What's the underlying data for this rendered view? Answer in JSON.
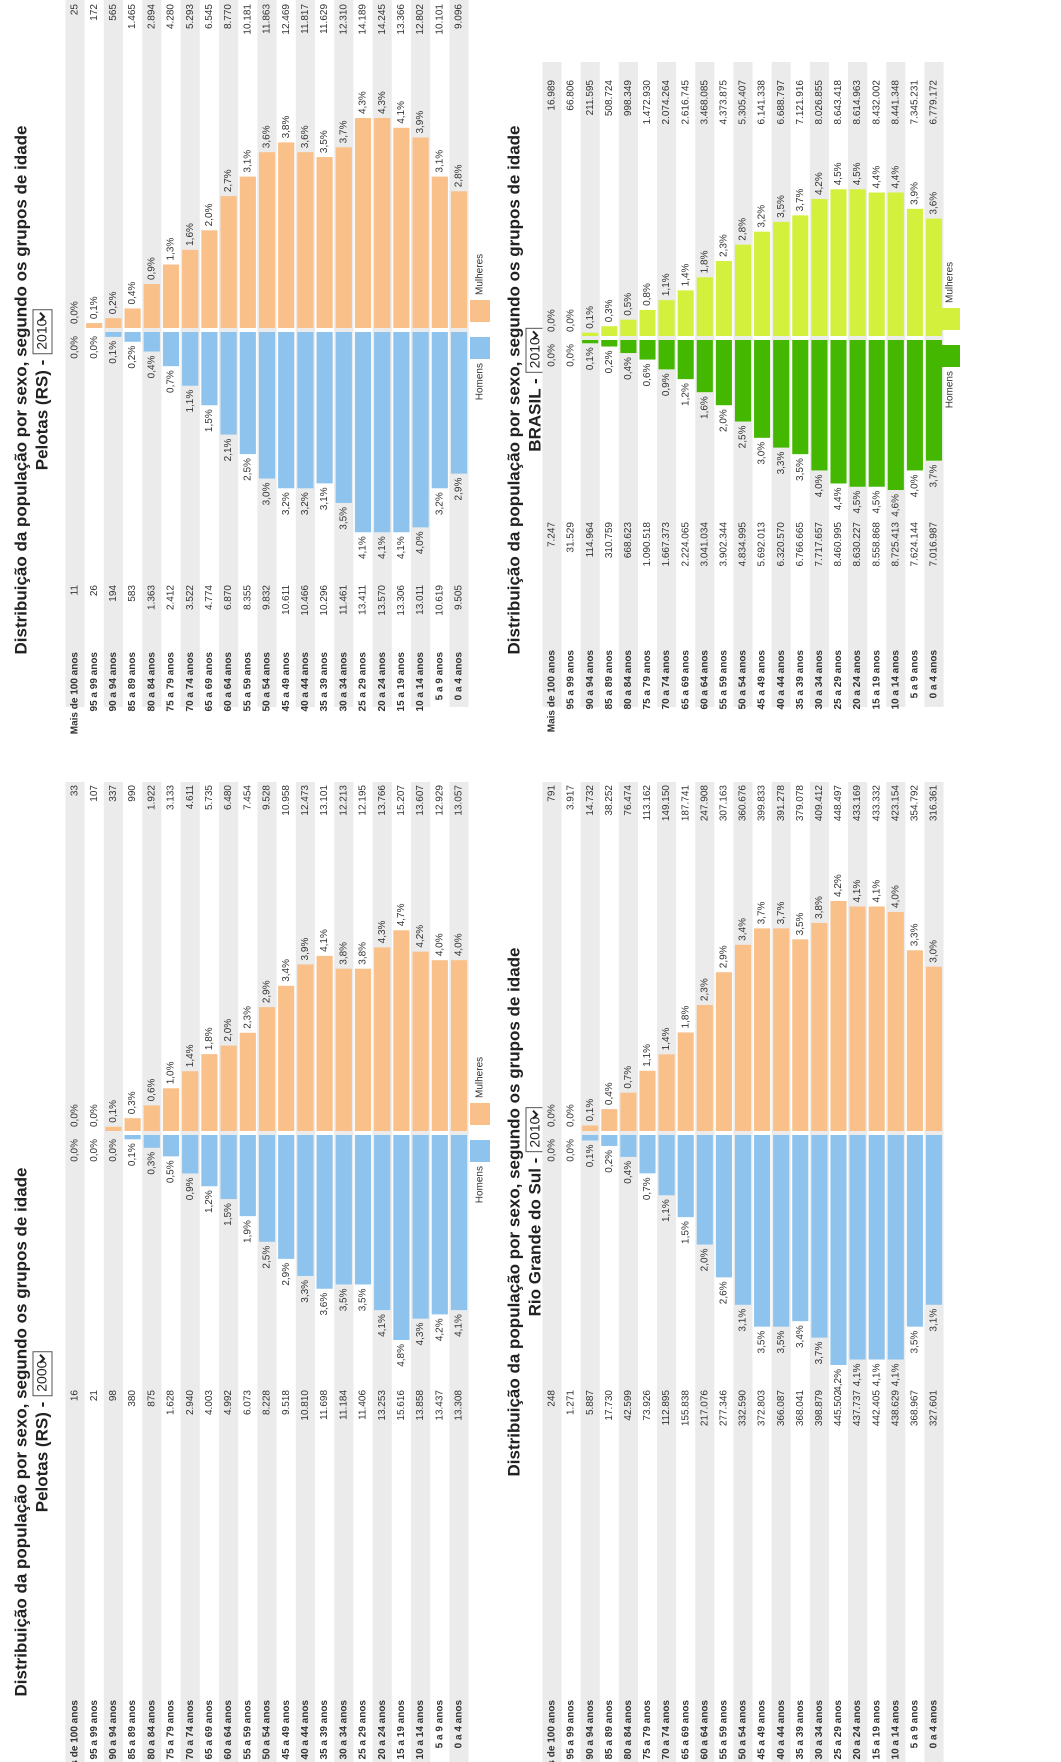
{
  "chart_data": [
    {
      "type": "pyramid",
      "title": "Distribuição da população por sexo, segundo os grupos de idade",
      "subtitle": "Pelotas (RS) -",
      "year": "2000",
      "categories": [
        "Mais de 100 anos",
        "95 a 99 anos",
        "90 a 94 anos",
        "85 a 89 anos",
        "80 a 84 anos",
        "75 a 79 anos",
        "70 a 74 anos",
        "65 a 69 anos",
        "60 a 64 anos",
        "55 a 59 anos",
        "50 a 54 anos",
        "45 a 49 anos",
        "40 a 44 anos",
        "35 a 39 anos",
        "30 a 34 anos",
        "25 a 29 anos",
        "20 a 24 anos",
        "15 a 19 anos",
        "10 a 14 anos",
        "5 a 9 anos",
        "0 a 4 anos"
      ],
      "series": [
        {
          "name": "Homens",
          "color": "#8dc3ec",
          "values": [
            0.0,
            0.0,
            0.0,
            0.1,
            0.3,
            0.5,
            0.9,
            1.2,
            1.5,
            1.9,
            2.5,
            2.9,
            3.3,
            3.6,
            3.5,
            3.5,
            4.1,
            4.8,
            4.3,
            4.2,
            4.1
          ],
          "value_labels": [
            "0,0%",
            "0,0%",
            "0,0%",
            "0,1%",
            "0,3%",
            "0,5%",
            "0,9%",
            "1,2%",
            "1,5%",
            "1,9%",
            "2,5%",
            "2,9%",
            "3,3%",
            "3,6%",
            "3,5%",
            "3,5%",
            "4,1%",
            "4,8%",
            "4,3%",
            "4,2%",
            "4,1%"
          ],
          "counts": [
            "16",
            "21",
            "98",
            "380",
            "875",
            "1.628",
            "2.940",
            "4.003",
            "4.992",
            "6.073",
            "8.228",
            "9.518",
            "10.810",
            "11.698",
            "11.184",
            "11.406",
            "13.253",
            "15.616",
            "13.858",
            "13.437",
            "13.308"
          ]
        },
        {
          "name": "Mulheres",
          "color": "#f9c089",
          "values": [
            0.0,
            0.0,
            0.1,
            0.3,
            0.6,
            1.0,
            1.4,
            1.8,
            2.0,
            2.3,
            2.9,
            3.4,
            3.9,
            4.1,
            3.8,
            3.8,
            4.3,
            4.7,
            4.2,
            4.0,
            4.0
          ],
          "value_labels": [
            "0,0%",
            "0,0%",
            "0,1%",
            "0,3%",
            "0,6%",
            "1,0%",
            "1,4%",
            "1,8%",
            "2,0%",
            "2,3%",
            "2,9%",
            "3,4%",
            "3,9%",
            "4,1%",
            "3,8%",
            "3,8%",
            "4,3%",
            "4,7%",
            "4,2%",
            "4,0%",
            "4,0%"
          ],
          "counts": [
            "33",
            "107",
            "337",
            "990",
            "1.922",
            "3.133",
            "4.611",
            "5.735",
            "6.480",
            "7.454",
            "9.528",
            "10.958",
            "12.473",
            "13.101",
            "12.213",
            "12.195",
            "13.766",
            "15.207",
            "13.607",
            "12.929",
            "13.057"
          ]
        }
      ]
    },
    {
      "type": "pyramid",
      "title": "Distribuição da população por sexo, segundo os grupos de idade",
      "subtitle": "Pelotas (RS) -",
      "year": "2010",
      "categories": [
        "Mais de 100 anos",
        "95 a 99 anos",
        "90 a 94 anos",
        "85 a 89 anos",
        "80 a 84 anos",
        "75 a 79 anos",
        "70 a 74 anos",
        "65 a 69 anos",
        "60 a 64 anos",
        "55 a 59 anos",
        "50 a 54 anos",
        "45 a 49 anos",
        "40 a 44 anos",
        "35 a 39 anos",
        "30 a 34 anos",
        "25 a 29 anos",
        "20 a 24 anos",
        "15 a 19 anos",
        "10 a 14 anos",
        "5 a 9 anos",
        "0 a 4 anos"
      ],
      "series": [
        {
          "name": "Homens",
          "color": "#8dc3ec",
          "values": [
            0.0,
            0.0,
            0.1,
            0.2,
            0.4,
            0.7,
            1.1,
            1.5,
            2.1,
            2.5,
            3.0,
            3.2,
            3.2,
            3.1,
            3.5,
            4.1,
            4.1,
            4.1,
            4.0,
            3.2,
            2.9
          ],
          "value_labels": [
            "0,0%",
            "0,0%",
            "0,1%",
            "0,2%",
            "0,4%",
            "0,7%",
            "1,1%",
            "1,5%",
            "2,1%",
            "2,5%",
            "3,0%",
            "3,2%",
            "3,2%",
            "3,1%",
            "3,5%",
            "4,1%",
            "4,1%",
            "4,1%",
            "4,0%",
            "3,2%",
            "2,9%"
          ],
          "counts": [
            "11",
            "26",
            "194",
            "583",
            "1.363",
            "2.412",
            "3.522",
            "4.774",
            "6.870",
            "8.355",
            "9.832",
            "10.611",
            "10.466",
            "10.296",
            "11.461",
            "13.411",
            "13.570",
            "13.306",
            "13.011",
            "10.619",
            "9.505"
          ]
        },
        {
          "name": "Mulheres",
          "color": "#f9c089",
          "values": [
            0.0,
            0.1,
            0.2,
            0.4,
            0.9,
            1.3,
            1.6,
            2.0,
            2.7,
            3.1,
            3.6,
            3.8,
            3.6,
            3.5,
            3.7,
            4.3,
            4.3,
            4.1,
            3.9,
            3.1,
            2.8
          ],
          "value_labels": [
            "0,0%",
            "0,1%",
            "0,2%",
            "0,4%",
            "0,9%",
            "1,3%",
            "1,6%",
            "2,0%",
            "2,7%",
            "3,1%",
            "3,6%",
            "3,8%",
            "3,6%",
            "3,5%",
            "3,7%",
            "4,3%",
            "4,3%",
            "4,1%",
            "3,9%",
            "3,1%",
            "2,8%"
          ],
          "counts": [
            "25",
            "172",
            "565",
            "1.465",
            "2.894",
            "4.280",
            "5.293",
            "6.545",
            "8.770",
            "10.181",
            "11.863",
            "12.469",
            "11.817",
            "11.629",
            "12.310",
            "14.189",
            "14.245",
            "13.366",
            "12.802",
            "10.101",
            "9.096"
          ]
        }
      ]
    },
    {
      "type": "pyramid",
      "title": "Distribuição da população por sexo, segundo os grupos de idade",
      "subtitle": "Rio Grande do Sul -",
      "year": "2010",
      "categories": [
        "Mais de 100 anos",
        "95 a 99 anos",
        "90 a 94 anos",
        "85 a 89 anos",
        "80 a 84 anos",
        "75 a 79 anos",
        "70 a 74 anos",
        "65 a 69 anos",
        "60 a 64 anos",
        "55 a 59 anos",
        "50 a 54 anos",
        "45 a 49 anos",
        "40 a 44 anos",
        "35 a 39 anos",
        "30 a 34 anos",
        "25 a 29 anos",
        "20 a 24 anos",
        "15 a 19 anos",
        "10 a 14 anos",
        "5 a 9 anos",
        "0 a 4 anos"
      ],
      "series": [
        {
          "color": "#8dc3ec",
          "values": [
            0.0,
            0.0,
            0.1,
            0.2,
            0.4,
            0.7,
            1.1,
            1.5,
            2.0,
            2.6,
            3.1,
            3.5,
            3.5,
            3.4,
            3.7,
            4.2,
            4.1,
            4.1,
            4.1,
            3.5,
            3.1
          ],
          "value_labels": [
            "0,0%",
            "0,0%",
            "0,1%",
            "0,2%",
            "0,4%",
            "0,7%",
            "1,1%",
            "1,5%",
            "2,0%",
            "2,6%",
            "3,1%",
            "3,5%",
            "3,5%",
            "3,4%",
            "3,7%",
            "4,2%",
            "4,1%",
            "4,1%",
            "4,1%",
            "3,5%",
            "3,1%"
          ],
          "counts": [
            "248",
            "1.271",
            "5.887",
            "17.730",
            "42.599",
            "73.926",
            "112.895",
            "155.838",
            "217.076",
            "277.346",
            "332.590",
            "372.803",
            "366.087",
            "368.041",
            "398.879",
            "445.502",
            "437.737",
            "442.405",
            "438.629",
            "368.967",
            "327.601"
          ]
        },
        {
          "color": "#f9c089",
          "values": [
            0.0,
            0.0,
            0.1,
            0.4,
            0.7,
            1.1,
            1.4,
            1.8,
            2.3,
            2.9,
            3.4,
            3.7,
            3.7,
            3.5,
            3.8,
            4.2,
            4.1,
            4.1,
            4.0,
            3.3,
            3.0
          ],
          "value_labels": [
            "0,0%",
            "0,0%",
            "0,1%",
            "0,4%",
            "0,7%",
            "1,1%",
            "1,4%",
            "1,8%",
            "2,3%",
            "2,9%",
            "3,4%",
            "3,7%",
            "3,7%",
            "3,5%",
            "3,8%",
            "4,2%",
            "4,1%",
            "4,1%",
            "4,0%",
            "3,3%",
            "3,0%"
          ],
          "counts": [
            "791",
            "3.917",
            "14.732",
            "38.252",
            "76.474",
            "113.162",
            "149.150",
            "187.741",
            "247.908",
            "307.163",
            "360.676",
            "399.833",
            "391.278",
            "379.078",
            "409.412",
            "448.497",
            "433.169",
            "433.332",
            "423.154",
            "354.792",
            "316.361"
          ]
        }
      ]
    },
    {
      "type": "pyramid",
      "title": "Distribuição da população por sexo, segundo os grupos de idade",
      "subtitle": "BRASIL -",
      "year": "2010",
      "categories": [
        "Mais de 100 anos",
        "95 a 99 anos",
        "90 a 94 anos",
        "85 a 89 anos",
        "80 a 84 anos",
        "75 a 79 anos",
        "70 a 74 anos",
        "65 a 69 anos",
        "60 a 64 anos",
        "55 a 59 anos",
        "50 a 54 anos",
        "45 a 49 anos",
        "40 a 44 anos",
        "35 a 39 anos",
        "30 a 34 anos",
        "25 a 29 anos",
        "20 a 24 anos",
        "15 a 19 anos",
        "10 a 14 anos",
        "5 a 9 anos",
        "0 a 4 anos"
      ],
      "series": [
        {
          "name": "Homens",
          "color": "#44b700",
          "values": [
            0.0,
            0.0,
            0.1,
            0.2,
            0.4,
            0.6,
            0.9,
            1.2,
            1.6,
            2.0,
            2.5,
            3.0,
            3.3,
            3.5,
            4.0,
            4.4,
            4.5,
            4.5,
            4.6,
            4.0,
            3.7
          ],
          "value_labels": [
            "0,0%",
            "0,0%",
            "0,1%",
            "0,2%",
            "0,4%",
            "0,6%",
            "0,9%",
            "1,2%",
            "1,6%",
            "2,0%",
            "2,5%",
            "3,0%",
            "3,3%",
            "3,5%",
            "4,0%",
            "4,4%",
            "4,5%",
            "4,5%",
            "4,6%",
            "4,0%",
            "3,7%"
          ],
          "counts": [
            "7.247",
            "31.529",
            "114.964",
            "310.759",
            "668.623",
            "1.090.518",
            "1.667.373",
            "2.224.065",
            "3.041.034",
            "3.902.344",
            "4.834.995",
            "5.692.013",
            "6.320.570",
            "6.766.665",
            "7.717.657",
            "8.460.995",
            "8.630.227",
            "8.558.868",
            "8.725.413",
            "7.624.144",
            "7.016.987"
          ]
        },
        {
          "name": "Mulheres",
          "color": "#d2f03c",
          "values": [
            0.0,
            0.0,
            0.1,
            0.3,
            0.5,
            0.8,
            1.1,
            1.4,
            1.8,
            2.3,
            2.8,
            3.2,
            3.5,
            3.7,
            4.2,
            4.5,
            4.5,
            4.4,
            4.4,
            3.9,
            3.6
          ],
          "value_labels": [
            "0,0%",
            "0,0%",
            "0,1%",
            "0,3%",
            "0,5%",
            "0,8%",
            "1,1%",
            "1,4%",
            "1,8%",
            "2,3%",
            "2,8%",
            "3,2%",
            "3,5%",
            "3,7%",
            "4,2%",
            "4,5%",
            "4,5%",
            "4,4%",
            "4,4%",
            "3,9%",
            "3,6%"
          ],
          "counts": [
            "16.989",
            "66.806",
            "211.595",
            "508.724",
            "998.349",
            "1.472.930",
            "2.074.264",
            "2.616.745",
            "3.468.085",
            "4.373.875",
            "5.305.407",
            "6.141.338",
            "6.688.797",
            "7.121.916",
            "8.026.855",
            "8.643.418",
            "8.614.963",
            "8.432.002",
            "8.441.348",
            "7.345.231",
            "6.779.172"
          ]
        }
      ]
    }
  ]
}
